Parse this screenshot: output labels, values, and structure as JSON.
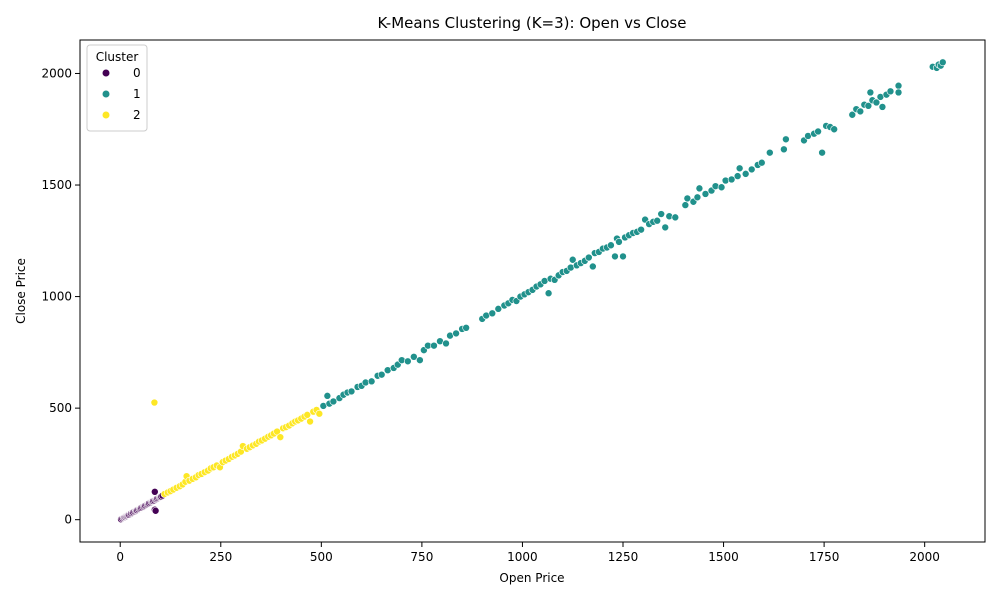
{
  "chart_data": {
    "type": "scatter",
    "title": "K-Means Clustering (K=3): Open vs Close",
    "xlabel": "Open Price",
    "ylabel": "Close Price",
    "xlim": [
      -100,
      2150
    ],
    "ylim": [
      -100,
      2150
    ],
    "xticks": [
      0,
      250,
      500,
      750,
      1000,
      1250,
      1500,
      1750,
      2000
    ],
    "yticks": [
      0,
      500,
      1000,
      1500,
      2000
    ],
    "grid": false,
    "legend": {
      "title": "Cluster",
      "placement": "top-left"
    },
    "series": [
      {
        "name": "0",
        "color": "#440154",
        "points": [
          [
            2,
            2
          ],
          [
            5,
            5
          ],
          [
            8,
            8
          ],
          [
            10,
            11
          ],
          [
            12,
            12
          ],
          [
            14,
            15
          ],
          [
            16,
            16
          ],
          [
            18,
            19
          ],
          [
            20,
            21
          ],
          [
            22,
            22
          ],
          [
            25,
            25
          ],
          [
            27,
            28
          ],
          [
            30,
            30
          ],
          [
            32,
            33
          ],
          [
            35,
            36
          ],
          [
            38,
            38
          ],
          [
            40,
            41
          ],
          [
            42,
            43
          ],
          [
            45,
            46
          ],
          [
            48,
            48
          ],
          [
            50,
            51
          ],
          [
            52,
            53
          ],
          [
            55,
            56
          ],
          [
            58,
            58
          ],
          [
            60,
            61
          ],
          [
            62,
            63
          ],
          [
            65,
            66
          ],
          [
            68,
            68
          ],
          [
            70,
            71
          ],
          [
            72,
            74
          ],
          [
            75,
            76
          ],
          [
            78,
            79
          ],
          [
            80,
            82
          ],
          [
            82,
            84
          ],
          [
            85,
            86
          ],
          [
            86,
            125
          ],
          [
            86,
            45
          ],
          [
            88,
            40
          ],
          [
            88,
            90
          ],
          [
            90,
            92
          ],
          [
            92,
            95
          ],
          [
            95,
            97
          ],
          [
            98,
            100
          ],
          [
            100,
            102
          ],
          [
            102,
            104
          ],
          [
            105,
            108
          ]
        ]
      },
      {
        "name": "1",
        "color": "#21918c",
        "points": [
          [
            505,
            510
          ],
          [
            515,
            555
          ],
          [
            520,
            520
          ],
          [
            530,
            530
          ],
          [
            545,
            545
          ],
          [
            555,
            560
          ],
          [
            565,
            570
          ],
          [
            575,
            575
          ],
          [
            590,
            595
          ],
          [
            600,
            600
          ],
          [
            610,
            615
          ],
          [
            625,
            620
          ],
          [
            640,
            645
          ],
          [
            650,
            650
          ],
          [
            665,
            670
          ],
          [
            680,
            680
          ],
          [
            690,
            695
          ],
          [
            700,
            715
          ],
          [
            715,
            710
          ],
          [
            730,
            730
          ],
          [
            745,
            715
          ],
          [
            755,
            760
          ],
          [
            765,
            780
          ],
          [
            780,
            780
          ],
          [
            795,
            800
          ],
          [
            810,
            790
          ],
          [
            820,
            825
          ],
          [
            835,
            835
          ],
          [
            850,
            855
          ],
          [
            860,
            860
          ],
          [
            900,
            900
          ],
          [
            910,
            915
          ],
          [
            925,
            925
          ],
          [
            940,
            945
          ],
          [
            955,
            960
          ],
          [
            965,
            970
          ],
          [
            975,
            985
          ],
          [
            985,
            980
          ],
          [
            995,
            1000
          ],
          [
            1005,
            1010
          ],
          [
            1015,
            1020
          ],
          [
            1025,
            1030
          ],
          [
            1035,
            1045
          ],
          [
            1045,
            1055
          ],
          [
            1055,
            1070
          ],
          [
            1065,
            1015
          ],
          [
            1070,
            1080
          ],
          [
            1080,
            1075
          ],
          [
            1090,
            1095
          ],
          [
            1100,
            1110
          ],
          [
            1110,
            1115
          ],
          [
            1120,
            1130
          ],
          [
            1125,
            1165
          ],
          [
            1135,
            1140
          ],
          [
            1145,
            1150
          ],
          [
            1155,
            1160
          ],
          [
            1165,
            1175
          ],
          [
            1175,
            1135
          ],
          [
            1180,
            1195
          ],
          [
            1190,
            1200
          ],
          [
            1200,
            1215
          ],
          [
            1210,
            1220
          ],
          [
            1220,
            1230
          ],
          [
            1230,
            1180
          ],
          [
            1235,
            1260
          ],
          [
            1240,
            1245
          ],
          [
            1250,
            1180
          ],
          [
            1255,
            1265
          ],
          [
            1265,
            1275
          ],
          [
            1275,
            1285
          ],
          [
            1285,
            1290
          ],
          [
            1295,
            1300
          ],
          [
            1305,
            1345
          ],
          [
            1315,
            1325
          ],
          [
            1325,
            1335
          ],
          [
            1335,
            1340
          ],
          [
            1345,
            1370
          ],
          [
            1355,
            1310
          ],
          [
            1365,
            1360
          ],
          [
            1380,
            1355
          ],
          [
            1405,
            1410
          ],
          [
            1410,
            1440
          ],
          [
            1425,
            1425
          ],
          [
            1435,
            1445
          ],
          [
            1440,
            1485
          ],
          [
            1455,
            1460
          ],
          [
            1470,
            1475
          ],
          [
            1480,
            1495
          ],
          [
            1495,
            1490
          ],
          [
            1505,
            1520
          ],
          [
            1520,
            1525
          ],
          [
            1535,
            1540
          ],
          [
            1540,
            1575
          ],
          [
            1555,
            1550
          ],
          [
            1570,
            1570
          ],
          [
            1585,
            1590
          ],
          [
            1595,
            1600
          ],
          [
            1615,
            1645
          ],
          [
            1650,
            1660
          ],
          [
            1655,
            1705
          ],
          [
            1700,
            1700
          ],
          [
            1710,
            1720
          ],
          [
            1725,
            1730
          ],
          [
            1735,
            1740
          ],
          [
            1745,
            1645
          ],
          [
            1755,
            1765
          ],
          [
            1765,
            1760
          ],
          [
            1775,
            1750
          ],
          [
            1820,
            1815
          ],
          [
            1830,
            1840
          ],
          [
            1840,
            1830
          ],
          [
            1850,
            1860
          ],
          [
            1860,
            1855
          ],
          [
            1865,
            1915
          ],
          [
            1870,
            1880
          ],
          [
            1880,
            1870
          ],
          [
            1890,
            1895
          ],
          [
            1895,
            1850
          ],
          [
            1905,
            1905
          ],
          [
            1915,
            1920
          ],
          [
            1935,
            1945
          ],
          [
            1935,
            1915
          ],
          [
            2020,
            2030
          ],
          [
            2030,
            2025
          ],
          [
            2035,
            2040
          ],
          [
            2040,
            2035
          ],
          [
            2045,
            2050
          ]
        ]
      },
      {
        "name": "2",
        "color": "#fde725",
        "points": [
          [
            85,
            525
          ],
          [
            110,
            115
          ],
          [
            118,
            122
          ],
          [
            125,
            128
          ],
          [
            132,
            135
          ],
          [
            140,
            143
          ],
          [
            148,
            150
          ],
          [
            155,
            158
          ],
          [
            162,
            170
          ],
          [
            165,
            195
          ],
          [
            172,
            175
          ],
          [
            180,
            183
          ],
          [
            188,
            190
          ],
          [
            195,
            200
          ],
          [
            202,
            205
          ],
          [
            210,
            213
          ],
          [
            218,
            220
          ],
          [
            225,
            230
          ],
          [
            232,
            235
          ],
          [
            240,
            243
          ],
          [
            248,
            235
          ],
          [
            255,
            258
          ],
          [
            262,
            265
          ],
          [
            270,
            272
          ],
          [
            278,
            282
          ],
          [
            285,
            288
          ],
          [
            292,
            295
          ],
          [
            300,
            305
          ],
          [
            305,
            330
          ],
          [
            315,
            318
          ],
          [
            322,
            325
          ],
          [
            330,
            333
          ],
          [
            338,
            340
          ],
          [
            345,
            350
          ],
          [
            352,
            355
          ],
          [
            360,
            363
          ],
          [
            368,
            372
          ],
          [
            375,
            378
          ],
          [
            382,
            386
          ],
          [
            390,
            395
          ],
          [
            398,
            370
          ],
          [
            405,
            410
          ],
          [
            412,
            415
          ],
          [
            420,
            422
          ],
          [
            428,
            432
          ],
          [
            435,
            440
          ],
          [
            442,
            445
          ],
          [
            450,
            453
          ],
          [
            458,
            462
          ],
          [
            465,
            470
          ],
          [
            472,
            440
          ],
          [
            480,
            484
          ],
          [
            488,
            492
          ],
          [
            495,
            475
          ]
        ]
      }
    ]
  }
}
